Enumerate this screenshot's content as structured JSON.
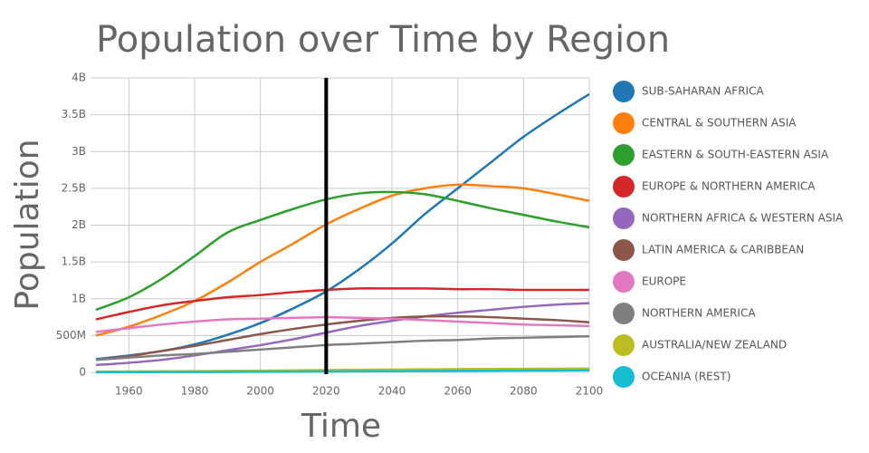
{
  "chart_data": {
    "type": "line",
    "title": "Population over Time by Region",
    "xlabel": "Time",
    "ylabel": "Population",
    "x": [
      1950,
      1960,
      1970,
      1980,
      1990,
      2000,
      2010,
      2020,
      2030,
      2040,
      2050,
      2060,
      2070,
      2080,
      2090,
      2100
    ],
    "xlim": [
      1950,
      2100
    ],
    "xticks": [
      1960,
      1980,
      2000,
      2020,
      2040,
      2060,
      2080,
      2100
    ],
    "ylim": [
      0,
      4000000000
    ],
    "yticks": [
      0,
      {
        "value": 500000000,
        "label": "500M"
      },
      {
        "value": 1000000000,
        "label": "1B"
      },
      {
        "value": 1500000000,
        "label": "1.5B"
      },
      {
        "value": 2000000000,
        "label": "2B"
      },
      {
        "value": 2500000000,
        "label": "2.5B"
      },
      {
        "value": 3000000000,
        "label": "3B"
      },
      {
        "value": 3500000000,
        "label": "3.5B"
      },
      {
        "value": 4000000000,
        "label": "4B"
      }
    ],
    "grid": true,
    "legend": "right",
    "vline_x": 2020,
    "vline_color": "#000000",
    "series": [
      {
        "name": "SUB-SAHARAN AFRICA",
        "color": "#1f77b4",
        "values": [
          180000000,
          230000000,
          290000000,
          380000000,
          510000000,
          670000000,
          870000000,
          1100000000,
          1400000000,
          1750000000,
          2150000000,
          2500000000,
          2850000000,
          3200000000,
          3500000000,
          3780000000
        ]
      },
      {
        "name": "CENTRAL & SOUTHERN ASIA",
        "color": "#ff7f0e",
        "values": [
          500000000,
          620000000,
          780000000,
          970000000,
          1220000000,
          1500000000,
          1750000000,
          2010000000,
          2220000000,
          2400000000,
          2500000000,
          2550000000,
          2530000000,
          2500000000,
          2420000000,
          2330000000
        ]
      },
      {
        "name": "EASTERN & SOUTH-EASTERN ASIA",
        "color": "#2ca02c",
        "values": [
          850000000,
          1020000000,
          1270000000,
          1580000000,
          1900000000,
          2070000000,
          2220000000,
          2350000000,
          2430000000,
          2450000000,
          2420000000,
          2330000000,
          2230000000,
          2140000000,
          2050000000,
          1970000000
        ]
      },
      {
        "name": "EUROPE & NORTHERN AMERICA",
        "color": "#d62728",
        "values": [
          720000000,
          820000000,
          910000000,
          970000000,
          1020000000,
          1050000000,
          1090000000,
          1120000000,
          1140000000,
          1140000000,
          1140000000,
          1130000000,
          1130000000,
          1120000000,
          1120000000,
          1120000000
        ]
      },
      {
        "name": "NORTHERN AFRICA & WESTERN ASIA",
        "color": "#9467bd",
        "values": [
          100000000,
          130000000,
          170000000,
          230000000,
          300000000,
          370000000,
          450000000,
          540000000,
          630000000,
          700000000,
          760000000,
          810000000,
          850000000,
          890000000,
          920000000,
          940000000
        ]
      },
      {
        "name": "LATIN AMERICA & CARIBBEAN",
        "color": "#8c564b",
        "values": [
          170000000,
          220000000,
          290000000,
          360000000,
          440000000,
          520000000,
          590000000,
          650000000,
          700000000,
          740000000,
          760000000,
          760000000,
          750000000,
          730000000,
          710000000,
          680000000
        ]
      },
      {
        "name": "EUROPE",
        "color": "#e377c2",
        "values": [
          550000000,
          600000000,
          650000000,
          690000000,
          720000000,
          730000000,
          740000000,
          750000000,
          740000000,
          730000000,
          710000000,
          690000000,
          670000000,
          650000000,
          640000000,
          630000000
        ]
      },
      {
        "name": "NORTHERN AMERICA",
        "color": "#7f7f7f",
        "values": [
          170000000,
          200000000,
          230000000,
          250000000,
          280000000,
          310000000,
          340000000,
          370000000,
          390000000,
          410000000,
          430000000,
          440000000,
          460000000,
          470000000,
          480000000,
          490000000
        ]
      },
      {
        "name": "AUSTRALIA/NEW ZEALAND",
        "color": "#bcbd22",
        "values": [
          10000000,
          12000000,
          15000000,
          17000000,
          20000000,
          23000000,
          27000000,
          31000000,
          35000000,
          38000000,
          41000000,
          44000000,
          46000000,
          48000000,
          50000000,
          52000000
        ]
      },
      {
        "name": "OCEANIA (REST)",
        "color": "#17becf",
        "values": [
          2000000,
          3000000,
          4000000,
          5000000,
          6000000,
          8000000,
          10000000,
          12000000,
          14000000,
          16000000,
          18000000,
          20000000,
          22000000,
          24000000,
          25000000,
          27000000
        ]
      }
    ]
  }
}
